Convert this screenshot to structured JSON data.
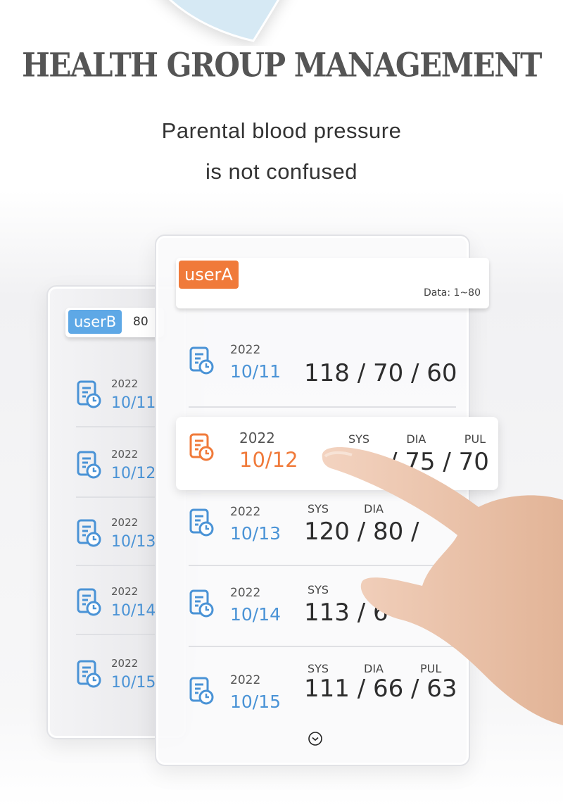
{
  "title": "HEALTH GROUP MANAGEMENT",
  "subtitle_lines": [
    "Parental blood pressure",
    "is not confused"
  ],
  "colors": {
    "accent_blue": "#4a93d6",
    "accent_orange": "#f07a3a",
    "title_gray": "#555555"
  },
  "user_b": {
    "badge": "userB",
    "data_partial": "80",
    "records": [
      {
        "year": "2022",
        "date": "10/11"
      },
      {
        "year": "2022",
        "date": "10/12"
      },
      {
        "year": "2022",
        "date": "10/13"
      },
      {
        "year": "2022",
        "date": "10/14"
      },
      {
        "year": "2022",
        "date": "10/15"
      }
    ]
  },
  "user_a": {
    "badge": "userA",
    "data_range": "Data: 1~80",
    "labels": {
      "sys": "SYS",
      "dia": "DIA",
      "pul": "PUL"
    },
    "records": [
      {
        "year": "2022",
        "date": "10/11",
        "values": "118 / 70 / 60",
        "icon": "record-clock-icon"
      },
      {
        "year": "2022",
        "date": "10/12",
        "values": "/ 75 / 70",
        "selected": true,
        "icon": "record-clock-icon"
      },
      {
        "year": "2022",
        "date": "10/13",
        "values": "120 / 80 /",
        "icon": "record-clock-icon"
      },
      {
        "year": "2022",
        "date": "10/14",
        "values": "113 / 6",
        "icon": "record-clock-icon"
      },
      {
        "year": "2022",
        "date": "10/15",
        "values": "111 / 66 / 63",
        "icon": "record-clock-icon"
      }
    ]
  },
  "more_icon": "chevron-down-circle-icon"
}
